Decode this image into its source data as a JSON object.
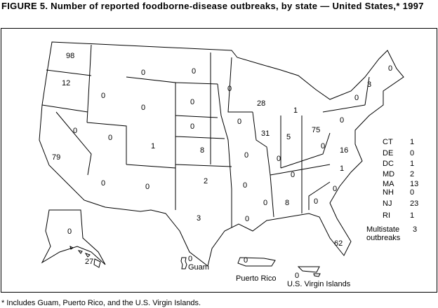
{
  "title": "FIGURE 5. Number of reported foodborne-disease  outbreaks, by state — United States,* 1997",
  "footnote": "* Includes Guam, Puerto Rico, and the U.S. Virgin Islands.",
  "states": {
    "WA": "98",
    "OR": "12",
    "CA": "79",
    "NV": "0",
    "ID": "0",
    "MT": "0",
    "WY": "0",
    "UT": "0",
    "CO": "1",
    "AZ": "0",
    "NM": "0",
    "ND": "0",
    "SD": "0",
    "NE": "0",
    "KS": "8",
    "OK": "2",
    "TX": "3",
    "MN": "0",
    "IA": "0",
    "MO": "0",
    "AR": "0",
    "LA": "0",
    "WI": "28",
    "IL": "31",
    "MI": "1",
    "IN": "5",
    "OH": "75",
    "KY": "0",
    "WV": "0",
    "TN": "0",
    "MS": "0",
    "AL": "8",
    "GA": "0",
    "FL": "62",
    "SC": "0",
    "NC": "1",
    "VA": "16",
    "PA": "0",
    "NY": "0",
    "VT": "3",
    "ME": "0",
    "AK": "0",
    "HI": "27"
  },
  "territories": [
    {
      "name": "Guam",
      "value": "0"
    },
    {
      "name": "Puerto Rico",
      "value": "0"
    },
    {
      "name": "U.S. Virgin Islands",
      "value": "0"
    }
  ],
  "legend": [
    {
      "state": "CT",
      "value": "1"
    },
    {
      "state": "DE",
      "value": "0"
    },
    {
      "state": "DC",
      "value": "1"
    },
    {
      "state": "MD",
      "value": "2"
    },
    {
      "state": "MA",
      "value": "13"
    },
    {
      "state": "NH",
      "value": "0"
    },
    {
      "state": "NJ",
      "value": "23"
    },
    {
      "state": "RI",
      "value": "1"
    }
  ],
  "multistate": {
    "label": "Multistate outbreaks",
    "value": "3"
  }
}
